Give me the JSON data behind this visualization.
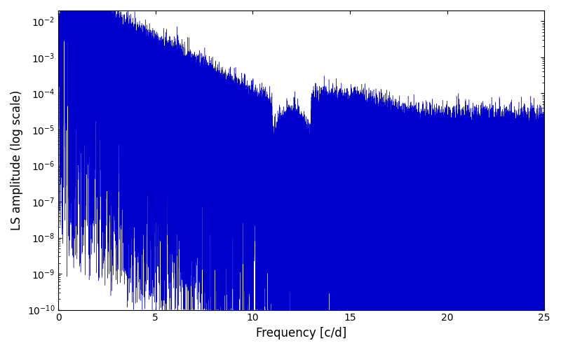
{
  "xlabel": "Frequency [c/d]",
  "ylabel": "LS amplitude (log scale)",
  "line_color": "#0000cc",
  "xlim": [
    0,
    25
  ],
  "ylim_log": [
    -10,
    -1.7
  ],
  "freq_max": 25.0,
  "n_points": 50000,
  "figsize": [
    8.0,
    5.0
  ],
  "dpi": 100,
  "background_color": "#ffffff"
}
